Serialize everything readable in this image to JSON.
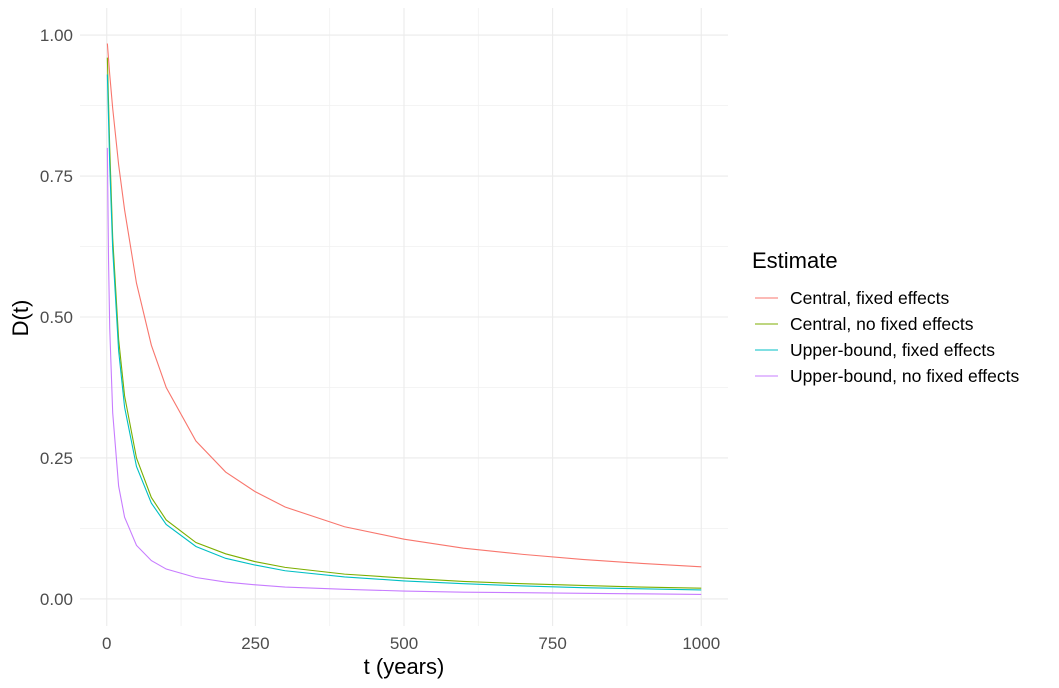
{
  "chart_data": {
    "type": "line",
    "xlabel": "t (years)",
    "ylabel": "D(t)",
    "xlim": [
      -45,
      1045
    ],
    "ylim": [
      -0.048,
      1.048
    ],
    "x_ticks": [
      0,
      250,
      500,
      750,
      1000
    ],
    "x_tick_labels": [
      "0",
      "250",
      "500",
      "750",
      "1000"
    ],
    "y_ticks": [
      0.0,
      0.25,
      0.5,
      0.75,
      1.0
    ],
    "y_tick_labels": [
      "0.00",
      "0.25",
      "0.50",
      "0.75",
      "1.00"
    ],
    "grid": true,
    "legend_title": "Estimate",
    "legend_position": "right",
    "series": [
      {
        "name": "Central, fixed effects",
        "color": "#F8766D",
        "x": [
          1,
          5,
          10,
          20,
          30,
          50,
          75,
          100,
          150,
          200,
          250,
          300,
          400,
          500,
          600,
          700,
          800,
          900,
          1000
        ],
        "y": [
          0.985,
          0.93,
          0.87,
          0.77,
          0.69,
          0.56,
          0.45,
          0.375,
          0.28,
          0.225,
          0.19,
          0.163,
          0.128,
          0.106,
          0.09,
          0.079,
          0.07,
          0.063,
          0.057
        ]
      },
      {
        "name": "Central, no fixed effects",
        "color": "#7CAE00",
        "x": [
          1,
          3,
          5,
          10,
          20,
          30,
          50,
          75,
          100,
          150,
          200,
          250,
          300,
          400,
          500,
          600,
          700,
          800,
          900,
          1000
        ],
        "y": [
          0.96,
          0.88,
          0.8,
          0.64,
          0.46,
          0.36,
          0.25,
          0.18,
          0.14,
          0.1,
          0.08,
          0.066,
          0.056,
          0.044,
          0.037,
          0.031,
          0.027,
          0.024,
          0.021,
          0.019
        ]
      },
      {
        "name": "Upper-bound, fixed effects",
        "color": "#00BFC4",
        "x": [
          1,
          3,
          5,
          10,
          20,
          30,
          50,
          75,
          100,
          150,
          200,
          250,
          300,
          400,
          500,
          600,
          700,
          800,
          900,
          1000
        ],
        "y": [
          0.93,
          0.85,
          0.77,
          0.62,
          0.44,
          0.34,
          0.235,
          0.17,
          0.132,
          0.093,
          0.072,
          0.06,
          0.05,
          0.039,
          0.032,
          0.027,
          0.023,
          0.02,
          0.018,
          0.016
        ]
      },
      {
        "name": "Upper-bound, no fixed effects",
        "color": "#C77CFF",
        "x": [
          1,
          3,
          5,
          10,
          20,
          30,
          50,
          75,
          100,
          150,
          200,
          250,
          300,
          400,
          500,
          600,
          700,
          800,
          900,
          1000
        ],
        "y": [
          0.8,
          0.6,
          0.48,
          0.33,
          0.2,
          0.145,
          0.095,
          0.068,
          0.053,
          0.038,
          0.03,
          0.025,
          0.021,
          0.017,
          0.014,
          0.012,
          0.011,
          0.01,
          0.009,
          0.008
        ]
      }
    ]
  }
}
